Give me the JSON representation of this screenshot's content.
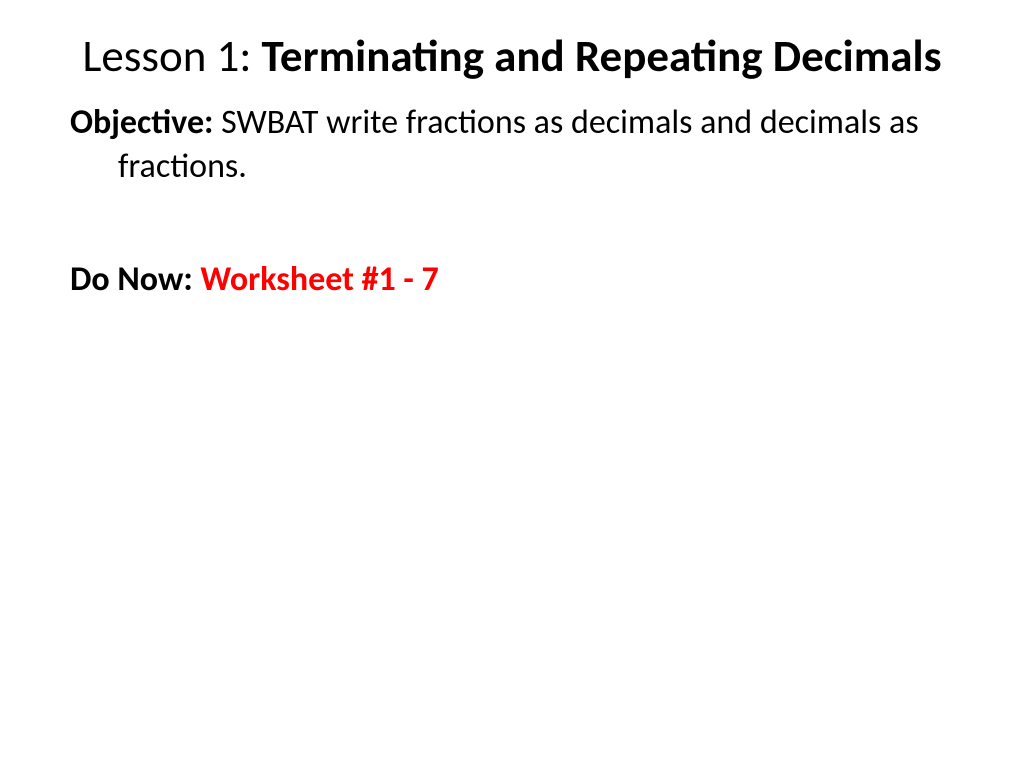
{
  "title": {
    "prefix": "Lesson 1: ",
    "topic": "Terminating and Repeating Decimals"
  },
  "objective": {
    "label": "Objective:  ",
    "text": "SWBAT write fractions as decimals and decimals as fractions."
  },
  "donow": {
    "label": "Do Now: ",
    "text": "Worksheet #1 - 7"
  },
  "colors": {
    "text": "#000000",
    "highlight": "#ff0000",
    "background": "#ffffff"
  },
  "typography": {
    "title_fontsize": 45,
    "body_fontsize": 34,
    "font_family": "Calibri"
  }
}
